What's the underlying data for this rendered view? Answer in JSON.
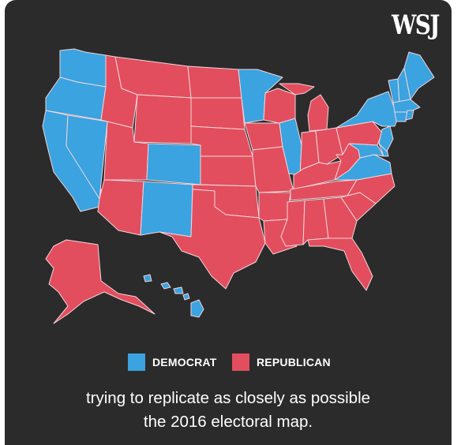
{
  "brand": {
    "logo_text": "WSJ"
  },
  "colors": {
    "background": "#2b2b2c",
    "democrat": "#3aa3e0",
    "republican": "#e24e5e",
    "border": "#f3d5da",
    "text": "#ffffff"
  },
  "legend": [
    {
      "label": "DEMOCRAT",
      "party": "democrat"
    },
    {
      "label": "REPUBLICAN",
      "party": "republican"
    }
  ],
  "caption": {
    "line1": "trying to replicate as closely as possible",
    "line2": "the 2016 electoral map."
  },
  "map_data": {
    "democrat": [
      "WA",
      "OR",
      "CA",
      "NV",
      "CO",
      "NM",
      "MN",
      "IL",
      "VA",
      "MD",
      "DE",
      "NJ",
      "NY",
      "CT",
      "RI",
      "MA",
      "VT",
      "NH",
      "ME",
      "HI",
      "DC"
    ],
    "republican": [
      "ID",
      "MT",
      "WY",
      "UT",
      "AZ",
      "ND",
      "SD",
      "NE",
      "KS",
      "OK",
      "TX",
      "IA",
      "MO",
      "AR",
      "LA",
      "WI",
      "MI",
      "IN",
      "OH",
      "KY",
      "TN",
      "MS",
      "AL",
      "GA",
      "FL",
      "SC",
      "NC",
      "WV",
      "PA",
      "AK"
    ]
  }
}
